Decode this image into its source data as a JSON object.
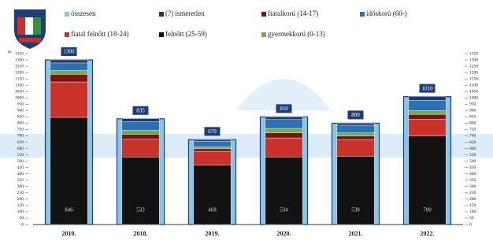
{
  "chart_data": {
    "type": "stacked-bar",
    "y_label": "fő",
    "categories": [
      "2010.",
      "2018.",
      "2019.",
      "2020.",
      "2021.",
      "2022."
    ],
    "total": {
      "name": "összesen",
      "color": "#8ec3e8",
      "values": [
        1300,
        835,
        670,
        850,
        800,
        1010
      ]
    },
    "series": [
      {
        "name": "felnőtt (25-59)",
        "color": "#121212",
        "values": [
          846,
          533,
          468,
          534,
          539,
          700
        ]
      },
      {
        "name": "fiatal felnőtt (18-24)",
        "color": "#c8322a",
        "values": [
          280,
          140,
          110,
          150,
          130,
          130
        ]
      },
      {
        "name": "fiatalkorú (14-17)",
        "color": "#7a1414",
        "values": [
          60,
          40,
          20,
          40,
          30,
          40
        ]
      },
      {
        "name": "gyermekkorú (0-13)",
        "color": "#6ab04c",
        "values": [
          30,
          30,
          15,
          35,
          25,
          30
        ]
      },
      {
        "name": "időskorú (60-)",
        "color": "#2e6fb5",
        "values": [
          60,
          70,
          45,
          70,
          60,
          80
        ]
      },
      {
        "name": "(?) ismeretlen",
        "color": "#1a3a6b",
        "values": [
          24,
          22,
          12,
          21,
          16,
          30
        ]
      }
    ],
    "ylim": [
      0,
      1350
    ],
    "yticks": [
      0,
      50,
      100,
      150,
      200,
      250,
      300,
      350,
      400,
      450,
      500,
      550,
      600,
      650,
      700,
      750,
      800,
      850,
      900,
      950,
      1000,
      1050,
      1100,
      1150,
      1200,
      1250,
      1300,
      1350
    ]
  }
}
